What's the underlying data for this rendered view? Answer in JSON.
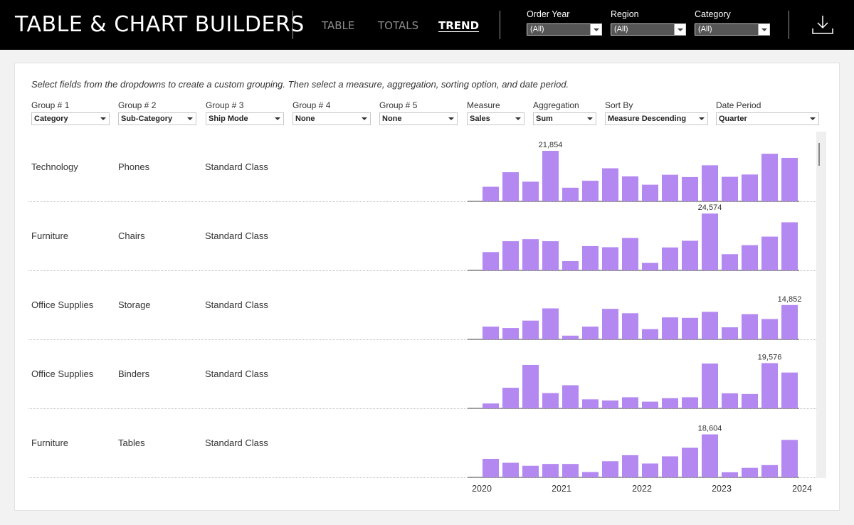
{
  "header": {
    "title": "TABLE & CHART BUILDERS",
    "tabs": [
      {
        "label": "TABLE",
        "active": false
      },
      {
        "label": "TOTALS",
        "active": false
      },
      {
        "label": "TREND",
        "active": true
      }
    ],
    "filters": [
      {
        "label": "Order Year",
        "value": "(All)"
      },
      {
        "label": "Region",
        "value": "(All)"
      },
      {
        "label": "Category",
        "value": "(All)"
      }
    ],
    "download_icon": "download-icon"
  },
  "instructions": "Select fields from the dropdowns to create a custom grouping. Then select a measure, aggregation, sorting option, and date period.",
  "controls": [
    {
      "label": "Group # 1",
      "value": "Category"
    },
    {
      "label": "Group # 2",
      "value": "Sub-Category"
    },
    {
      "label": "Group # 3",
      "value": "Ship Mode"
    },
    {
      "label": "Group # 4",
      "value": "None"
    },
    {
      "label": "Group # 5",
      "value": "None"
    },
    {
      "label": "Measure",
      "value": "Sales"
    },
    {
      "label": "Aggregation",
      "value": "Sum"
    },
    {
      "label": "Sort By",
      "value": "Measure Descending"
    },
    {
      "label": "Date Period",
      "value": "Quarter"
    }
  ],
  "colors": {
    "bar": "#b388f1",
    "header_bg": "#000000"
  },
  "chart_data": {
    "type": "bar",
    "title": "",
    "measure": "Sales",
    "aggregation": "Sum",
    "period": "Quarter",
    "x_tick_labels": [
      "2020",
      "2021",
      "2022",
      "2023",
      "2024"
    ],
    "rows": [
      {
        "group1": "Technology",
        "group2": "Phones",
        "group3": "Standard Class",
        "max_label": "21,854",
        "values": [
          6300,
          12600,
          8500,
          21854,
          5900,
          8900,
          14300,
          10800,
          7200,
          11500,
          10500,
          15600,
          10600,
          11600,
          20600,
          18800
        ]
      },
      {
        "group1": "Furniture",
        "group2": "Chairs",
        "group3": "Standard Class",
        "max_label": "24,574",
        "values": [
          7900,
          12600,
          13500,
          12600,
          4000,
          10500,
          10000,
          14000,
          3200,
          9900,
          12800,
          24574,
          7000,
          10900,
          14600,
          20800
        ]
      },
      {
        "group1": "Office Supplies",
        "group2": "Storage",
        "group3": "Standard Class",
        "max_label": "14,852",
        "values": [
          5500,
          4900,
          8100,
          13400,
          1600,
          5500,
          13200,
          11300,
          4400,
          9500,
          9300,
          11900,
          5200,
          10900,
          8800,
          14852
        ]
      },
      {
        "group1": "Office Supplies",
        "group2": "Binders",
        "group3": "Standard Class",
        "max_label": "19,576",
        "values": [
          2100,
          8900,
          18800,
          6600,
          10000,
          3900,
          3400,
          4800,
          2900,
          4400,
          4800,
          19400,
          6500,
          6200,
          19576,
          15500
        ]
      },
      {
        "group1": "Furniture",
        "group2": "Tables",
        "group3": "Standard Class",
        "max_label": "18,604",
        "values": [
          8000,
          6300,
          5000,
          5800,
          5800,
          2300,
          7000,
          9600,
          6000,
          9100,
          12800,
          18604,
          2200,
          4100,
          5300,
          16200
        ]
      }
    ]
  }
}
